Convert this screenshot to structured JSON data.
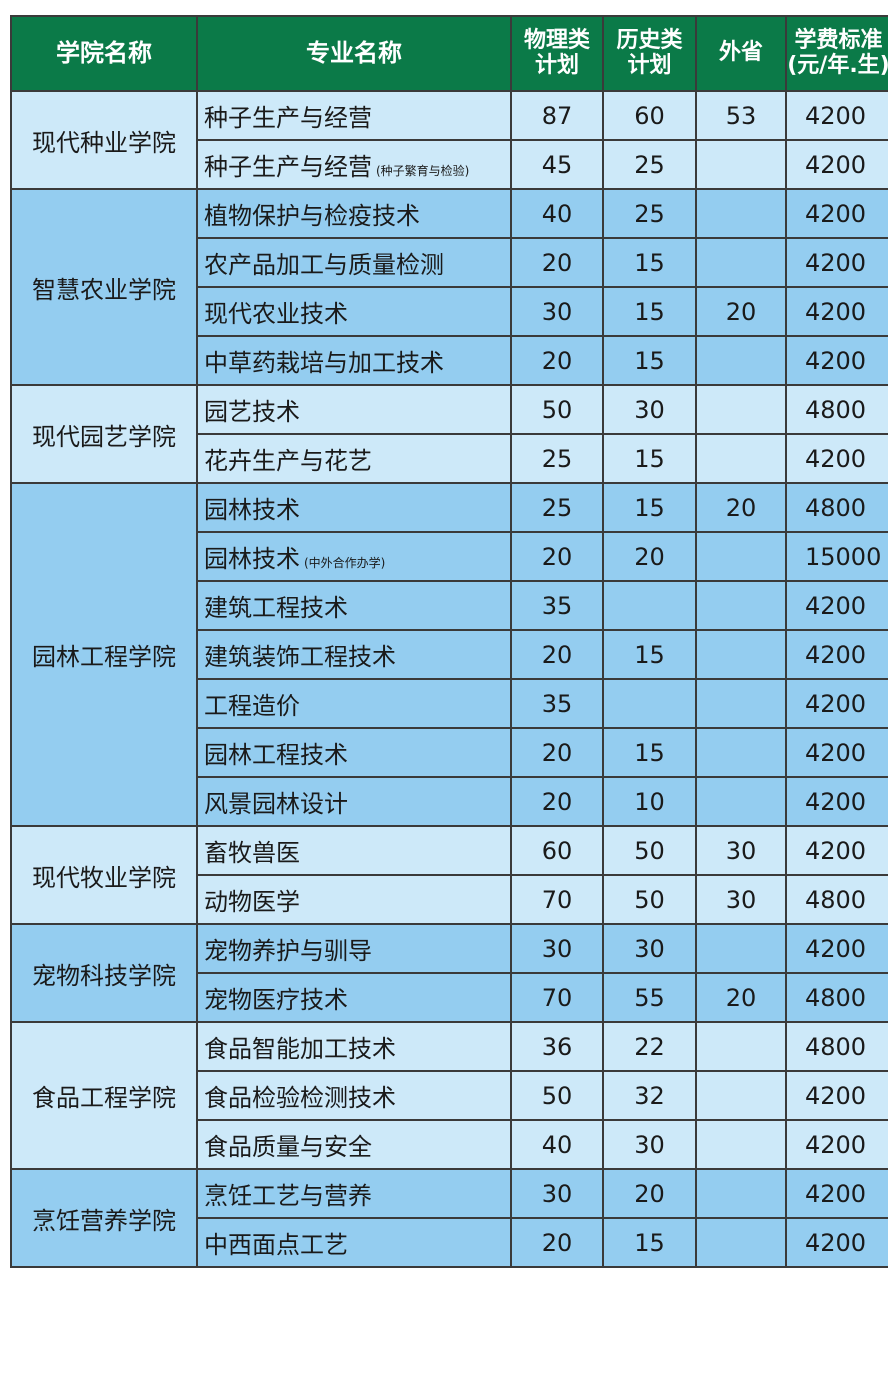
{
  "header": [
    "学院名称",
    "专业名称",
    "物理类\n计划",
    "历史类\n计划",
    "外省",
    "学费标准\n(元/年.生)"
  ],
  "colleges": [
    {
      "name": "现代种业学院",
      "majors": [
        {
          "name": "种子生产与经营",
          "physics": 87,
          "history": 60,
          "out_of_province": 53,
          "fee": 4200
        },
        {
          "name": "种子生产与经营",
          "note": "(种子繁育与检验)",
          "physics": 45,
          "history": 25,
          "out_of_province": null,
          "fee": 4200
        }
      ]
    },
    {
      "name": "智慧农业学院",
      "majors": [
        {
          "name": "植物保护与检疫技术",
          "physics": 40,
          "history": 25,
          "out_of_province": null,
          "fee": 4200
        },
        {
          "name": "农产品加工与质量检测",
          "physics": 20,
          "history": 15,
          "out_of_province": null,
          "fee": 4200
        },
        {
          "name": "现代农业技术",
          "physics": 30,
          "history": 15,
          "out_of_province": 20,
          "fee": 4200
        },
        {
          "name": "中草药栽培与加工技术",
          "physics": 20,
          "history": 15,
          "out_of_province": null,
          "fee": 4200
        }
      ]
    },
    {
      "name": "现代园艺学院",
      "majors": [
        {
          "name": "园艺技术",
          "physics": 50,
          "history": 30,
          "out_of_province": null,
          "fee": 4800
        },
        {
          "name": "花卉生产与花艺",
          "physics": 25,
          "history": 15,
          "out_of_province": null,
          "fee": 4200
        }
      ]
    },
    {
      "name": "园林工程学院",
      "majors": [
        {
          "name": "园林技术",
          "physics": 25,
          "history": 15,
          "out_of_province": 20,
          "fee": 4800
        },
        {
          "name": "园林技术",
          "note": "(中外合作办学)",
          "physics": 20,
          "history": 20,
          "out_of_province": null,
          "fee": 15000
        },
        {
          "name": "建筑工程技术",
          "physics": 35,
          "history": null,
          "out_of_province": null,
          "fee": 4200
        },
        {
          "name": "建筑装饰工程技术",
          "physics": 20,
          "history": 15,
          "out_of_province": null,
          "fee": 4200
        },
        {
          "name": "工程造价",
          "physics": 35,
          "history": null,
          "out_of_province": null,
          "fee": 4200
        },
        {
          "name": "园林工程技术",
          "physics": 20,
          "history": 15,
          "out_of_province": null,
          "fee": 4200
        },
        {
          "name": "风景园林设计",
          "physics": 20,
          "history": 10,
          "out_of_province": null,
          "fee": 4200
        }
      ]
    },
    {
      "name": "现代牧业学院",
      "majors": [
        {
          "name": "畜牧兽医",
          "physics": 60,
          "history": 50,
          "out_of_province": 30,
          "fee": 4200
        },
        {
          "name": "动物医学",
          "physics": 70,
          "history": 50,
          "out_of_province": 30,
          "fee": 4800
        }
      ]
    },
    {
      "name": "宠物科技学院",
      "majors": [
        {
          "name": "宠物养护与驯导",
          "physics": 30,
          "history": 30,
          "out_of_province": null,
          "fee": 4200
        },
        {
          "name": "宠物医疗技术",
          "physics": 70,
          "history": 55,
          "out_of_province": 20,
          "fee": 4800
        }
      ]
    },
    {
      "name": "食品工程学院",
      "majors": [
        {
          "name": "食品智能加工技术",
          "physics": 36,
          "history": 22,
          "out_of_province": null,
          "fee": 4800
        },
        {
          "name": "食品检验检测技术",
          "physics": 50,
          "history": 32,
          "out_of_province": null,
          "fee": 4200
        },
        {
          "name": "食品质量与安全",
          "physics": 40,
          "history": 30,
          "out_of_province": null,
          "fee": 4200
        }
      ]
    },
    {
      "name": "烹饪营养学院",
      "majors": [
        {
          "name": "烹饪工艺与营养",
          "physics": 30,
          "history": 20,
          "out_of_province": null,
          "fee": 4200
        },
        {
          "name": "中西面点工艺",
          "physics": 20,
          "history": 15,
          "out_of_province": null,
          "fee": 4200
        }
      ]
    }
  ]
}
